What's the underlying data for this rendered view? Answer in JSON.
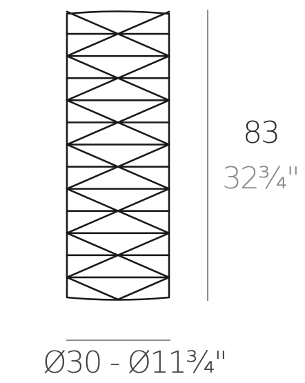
{
  "dimensions": {
    "height_metric": "83",
    "height_imperial": "32¾\"",
    "diameter_label": "Ø30 - Ø11¾\""
  },
  "colors": {
    "product_stroke": "#1a1a1a",
    "dimension_line": "#8c8c8c",
    "metric_text": "#2b2b2b",
    "imperial_text": "#8a8a8a"
  }
}
